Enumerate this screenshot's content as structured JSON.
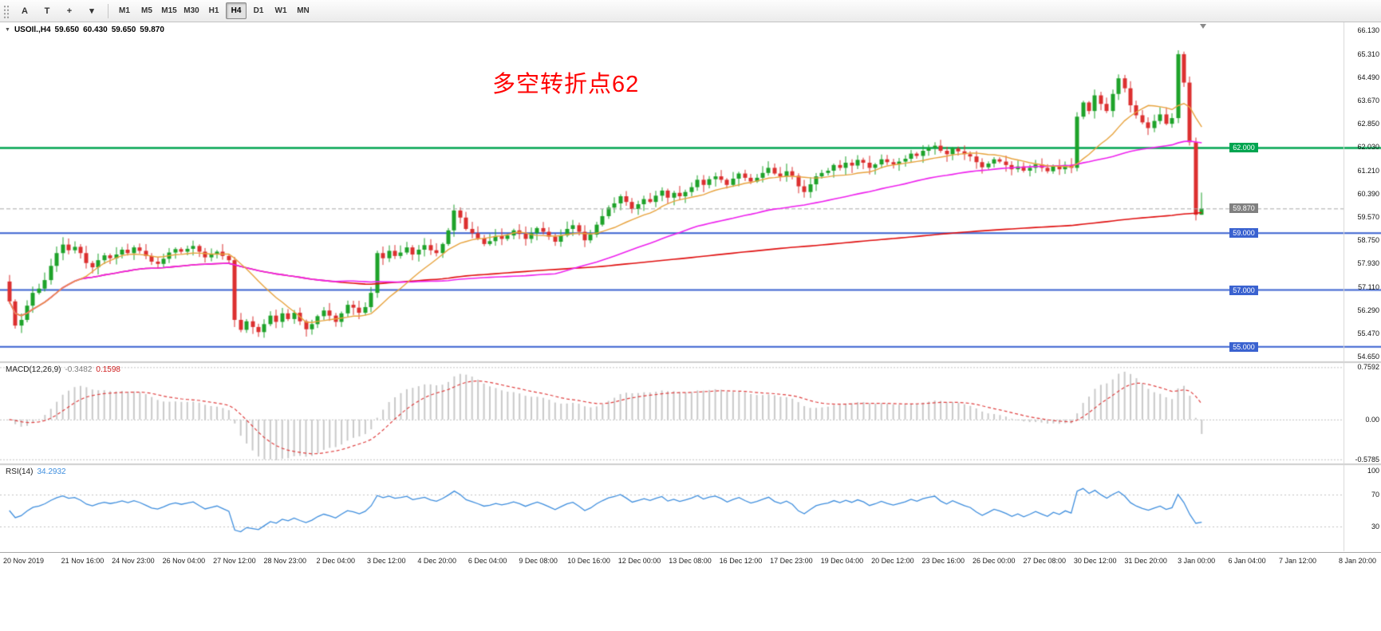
{
  "toolbar": {
    "tools": [
      {
        "id": "cursor",
        "label": "A"
      },
      {
        "id": "text",
        "label": "T"
      },
      {
        "id": "crosshair",
        "label": "+"
      },
      {
        "id": "more-dropdown",
        "label": "▾"
      }
    ],
    "timeframes": [
      "M1",
      "M5",
      "M15",
      "M30",
      "H1",
      "H4",
      "D1",
      "W1",
      "MN"
    ],
    "active_timeframe": "H4"
  },
  "chart": {
    "title_symbol": "USOIl.,H4",
    "ohlc": {
      "open": "59.650",
      "high": "60.430",
      "low": "59.650",
      "close": "59.870"
    },
    "annotation": {
      "text": "多空转折点62",
      "color": "#FF0000"
    }
  },
  "colors": {
    "chart_bg": "#FFFFFF",
    "candle_up": "#1EA32A",
    "candle_down": "#DC3030",
    "ma_fast": "#E8A33D",
    "ma_mid": "#EE22EE",
    "ma_slow": "#E01010",
    "level_green": "#00A550",
    "level_blue": "#3A62D0",
    "bid_badge": "#808080",
    "bid_line": "#A8A8A8",
    "macd_hist": "#C9C9C9",
    "macd_signal": "#E04040",
    "rsi_line": "#3E8EDE",
    "grid_dotted": "#C4C4C4",
    "pane_border": "#9E9E9E"
  },
  "chart_data": {
    "type": "candlestick",
    "symbol": "USOIl.",
    "timeframe": "H4",
    "price_axis_labels": [
      "66.130",
      "65.310",
      "64.490",
      "63.670",
      "62.850",
      "62.030",
      "61.210",
      "60.390",
      "59.570",
      "58.750",
      "57.930",
      "57.110",
      "56.290",
      "55.470",
      "54.650"
    ],
    "price_range": {
      "max": 66.42,
      "min": 54.49
    },
    "levels": [
      {
        "value": 62.0,
        "label": "62.000",
        "color": "#00A550",
        "width": 2.5
      },
      {
        "value": 59.0,
        "label": "59.000",
        "color": "#3A62D0",
        "width": 2
      },
      {
        "value": 57.0,
        "label": "57.000",
        "color": "#3A62D0",
        "width": 2
      },
      {
        "value": 55.0,
        "label": "55.000",
        "color": "#3A62D0",
        "width": 2
      }
    ],
    "bid": {
      "value": 59.87,
      "label": "59.870"
    },
    "closes": [
      56.6,
      55.75,
      55.95,
      56.45,
      56.9,
      57.05,
      57.35,
      57.85,
      58.3,
      58.6,
      58.4,
      58.52,
      58.3,
      57.95,
      57.8,
      58.05,
      58.22,
      58.12,
      58.25,
      58.42,
      58.3,
      58.5,
      58.38,
      58.2,
      58.0,
      57.92,
      58.1,
      58.32,
      58.44,
      58.35,
      58.45,
      58.55,
      58.35,
      58.15,
      58.25,
      58.35,
      58.2,
      58.05,
      55.95,
      55.6,
      55.9,
      55.7,
      55.52,
      55.8,
      56.1,
      55.88,
      56.18,
      55.98,
      56.2,
      55.9,
      55.62,
      55.8,
      56.08,
      56.28,
      56.1,
      55.88,
      56.18,
      56.48,
      56.38,
      56.2,
      56.4,
      56.9,
      58.3,
      58.12,
      58.38,
      58.2,
      58.32,
      58.5,
      58.25,
      58.42,
      58.58,
      58.4,
      58.3,
      58.62,
      59.1,
      59.8,
      59.55,
      59.15,
      59.0,
      58.82,
      58.62,
      58.72,
      58.9,
      58.8,
      58.92,
      59.1,
      58.98,
      58.8,
      59.0,
      59.18,
      59.05,
      58.88,
      58.7,
      58.92,
      59.15,
      59.28,
      59.05,
      58.75,
      58.95,
      59.3,
      59.6,
      59.9,
      60.05,
      60.3,
      60.1,
      59.85,
      60.02,
      60.2,
      60.1,
      60.32,
      60.5,
      60.25,
      60.42,
      60.3,
      60.45,
      60.62,
      60.88,
      60.7,
      60.9,
      61.0,
      60.88,
      60.7,
      60.92,
      61.1,
      60.95,
      60.82,
      60.95,
      61.12,
      61.3,
      61.1,
      61.0,
      61.18,
      61.02,
      60.65,
      60.45,
      60.72,
      61.0,
      61.12,
      61.2,
      61.4,
      61.3,
      61.48,
      61.38,
      61.58,
      61.48,
      61.3,
      61.42,
      61.6,
      61.5,
      61.42,
      61.52,
      61.62,
      61.8,
      61.72,
      61.9,
      62.0,
      62.08,
      61.9,
      61.78,
      61.98,
      61.88,
      61.78,
      61.7,
      61.5,
      61.32,
      61.45,
      61.6,
      61.52,
      61.4,
      61.25,
      61.35,
      61.2,
      61.3,
      61.42,
      61.3,
      61.18,
      61.35,
      61.25,
      61.4,
      61.3,
      63.1,
      63.6,
      63.3,
      63.85,
      63.55,
      63.3,
      63.9,
      64.45,
      64.1,
      63.5,
      63.15,
      62.9,
      62.7,
      62.95,
      63.18,
      62.85,
      63.05,
      65.3,
      64.3,
      62.2,
      59.65,
      59.87
    ],
    "current_bar": {
      "open": 59.65,
      "high": 60.43,
      "low": 59.65,
      "close": 59.87
    },
    "moving_averages": [
      {
        "name": "MA-fast",
        "period": 13
      },
      {
        "name": "MA-mid",
        "period": 55
      },
      {
        "name": "MA-slow",
        "period": 200
      }
    ],
    "time_axis_labels": [
      "20 Nov 2019",
      "21 Nov 16:00",
      "24 Nov 23:00",
      "26 Nov 04:00",
      "27 Nov 12:00",
      "28 Nov 23:00",
      "2 Dec 04:00",
      "3 Dec 12:00",
      "4 Dec 20:00",
      "6 Dec 04:00",
      "9 Dec 08:00",
      "10 Dec 16:00",
      "12 Dec 00:00",
      "13 Dec 08:00",
      "16 Dec 12:00",
      "17 Dec 23:00",
      "19 Dec 04:00",
      "20 Dec 12:00",
      "23 Dec 16:00",
      "26 Dec 00:00",
      "27 Dec 08:00",
      "30 Dec 12:00",
      "31 Dec 20:00",
      "3 Jan 00:00",
      "6 Jan 04:00",
      "7 Jan 12:00",
      "8 Jan 20:00"
    ],
    "indicators": {
      "macd": {
        "label": "MACD(12,26,9)",
        "value_main": "-0.3482",
        "value_signal": "0.1598",
        "fast": 12,
        "slow": 26,
        "signal": 9,
        "axis_labels": [
          "0.7592",
          "0.00",
          "-0.5785"
        ]
      },
      "rsi": {
        "label": "RSI(14)",
        "value": "34.2932",
        "period": 14,
        "axis_labels": [
          "100",
          "70",
          "30"
        ],
        "levels": [
          70,
          30
        ]
      }
    }
  }
}
